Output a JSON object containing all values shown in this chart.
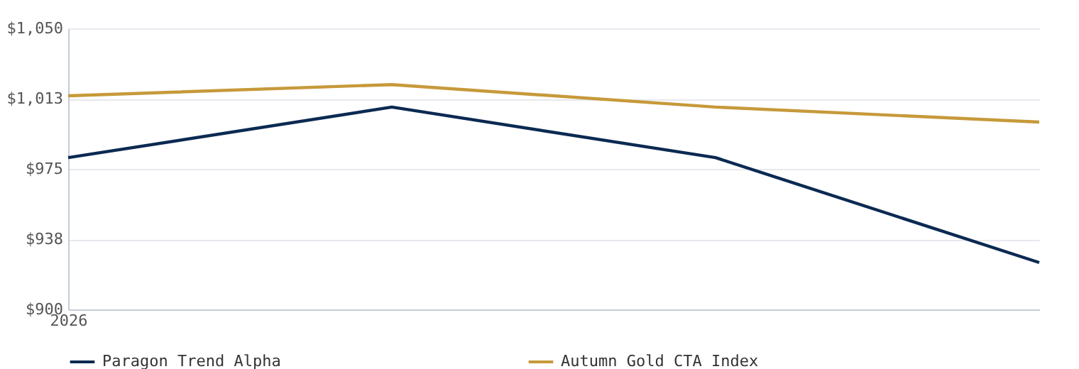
{
  "chart_data": {
    "type": "line",
    "categories": [
      "2026",
      null,
      null,
      null
    ],
    "series": [
      {
        "name": "Paragon Trend Alpha",
        "color": "#0b2a52",
        "values": [
          981,
          1008,
          981,
          925
        ]
      },
      {
        "name": "Autumn Gold CTA Index",
        "color": "#c7993a",
        "values": [
          1014,
          1020,
          1008,
          1000
        ]
      }
    ],
    "ylim": [
      900,
      1050
    ],
    "yticks": [
      {
        "value": 900,
        "label": "$900"
      },
      {
        "value": 937.5,
        "label": "$938"
      },
      {
        "value": 975,
        "label": "$975"
      },
      {
        "value": 1012.5,
        "label": "$1,013"
      },
      {
        "value": 1050,
        "label": "$1,050"
      }
    ],
    "grid": "y",
    "legend": "bottom",
    "marker": "none",
    "line_style": "solid"
  }
}
